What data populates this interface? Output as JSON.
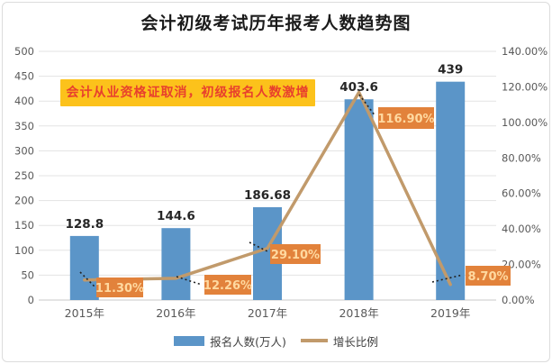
{
  "legend": [
    {
      "label": "报名人数(万人)",
      "swatch": "bar"
    },
    {
      "label": "增长比例",
      "swatch": "line"
    }
  ],
  "colors": {
    "bar": "#5B95C8",
    "line": "#C19A6B",
    "growth_label_bg": "#E2823B",
    "growth_label_text": "#FFD9A0",
    "annotation_bg": "#FCC21B",
    "annotation_text": "#E8402D",
    "grid": "#E3E3E3",
    "axis_line": "#C9C9C9",
    "axis_text": "#595959",
    "leader": "#222222"
  },
  "chart_data": {
    "type": "bar+line combo",
    "title": "会计初级考试历年报考人数趋势图",
    "annotation": "会计从业资格证取消，初级报名人数激增",
    "categories": [
      "2015年",
      "2016年",
      "2017年",
      "2018年",
      "2019年"
    ],
    "series": [
      {
        "name": "报名人数(万人)",
        "type": "bar",
        "axis": "left",
        "values": [
          128.8,
          144.6,
          186.68,
          403.6,
          439
        ],
        "data_labels": [
          "128.8",
          "144.6",
          "186.68",
          "403.6",
          "439"
        ]
      },
      {
        "name": "增长比例",
        "type": "line",
        "axis": "right",
        "values_percent": [
          11.3,
          12.26,
          29.1,
          116.9,
          8.7
        ],
        "data_labels": [
          "11.30%",
          "12.26%",
          "29.10%",
          "116.90%",
          "8.70%"
        ]
      }
    ],
    "left_axis": {
      "min": 0,
      "max": 500,
      "step": 50,
      "tick_labels": [
        "0",
        "50",
        "100",
        "150",
        "200",
        "250",
        "300",
        "350",
        "400",
        "450",
        "500"
      ]
    },
    "right_axis": {
      "min_percent": 0,
      "max_percent": 140,
      "step_percent": 20,
      "tick_labels": [
        "0.00%",
        "20.00%",
        "40.00%",
        "60.00%",
        "80.00%",
        "100.00%",
        "120.00%",
        "140.00%"
      ]
    },
    "grid": true,
    "legend_position": "bottom"
  }
}
